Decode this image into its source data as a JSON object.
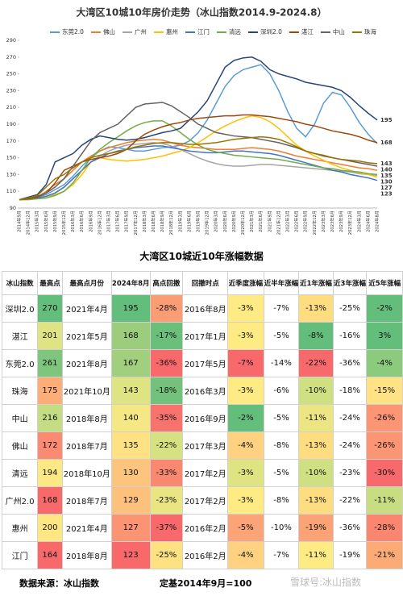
{
  "chart_data": {
    "type": "line",
    "title": "大湾区10城10年房价走势（冰山指数2014.9-2024.8）",
    "categories": [
      "2014年9月",
      "2014年12月",
      "2015年3月",
      "2015年6月",
      "2015年9月",
      "2015年12月",
      "2016年3月",
      "2016年6月",
      "2016年9月",
      "2016年12月",
      "2017年3月",
      "2017年6月",
      "2017年9月",
      "2017年12月",
      "2018年3月",
      "2018年6月",
      "2018年9月",
      "2018年12月",
      "2019年3月",
      "2019年6月",
      "2019年9月",
      "2019年12月",
      "2020年3月",
      "2020年6月",
      "2020年9月",
      "2020年12月",
      "2021年3月",
      "2021年6月",
      "2021年9月",
      "2021年12月",
      "2022年3月",
      "2022年6月",
      "2022年9月",
      "2022年12月",
      "2023年3月",
      "2023年6月",
      "2023年9月",
      "2023年12月",
      "2024年3月",
      "2024年6月",
      "2024年8月"
    ],
    "ylim": [
      90,
      290
    ],
    "yticks": [
      90,
      110,
      130,
      150,
      170,
      190,
      210,
      230,
      250,
      270,
      290
    ],
    "grid": false,
    "legend": "top",
    "series": [
      {
        "name": "东莞2.0",
        "color": "#5b9bd5",
        "label_last": false,
        "values": [
          100,
          101,
          103,
          106,
          112,
          118,
          128,
          140,
          150,
          158,
          163,
          162,
          160,
          158,
          158,
          160,
          162,
          163,
          165,
          170,
          180,
          195,
          215,
          235,
          248,
          255,
          258,
          261,
          250,
          230,
          205,
          185,
          175,
          190,
          215,
          228,
          225,
          210,
          192,
          178,
          167
        ]
      },
      {
        "name": "佛山",
        "color": "#ed7d31",
        "label_last": true,
        "values": [
          100,
          101,
          103,
          110,
          118,
          125,
          135,
          145,
          152,
          158,
          162,
          165,
          168,
          170,
          171,
          172,
          171,
          168,
          165,
          163,
          162,
          161,
          160,
          160,
          160,
          161,
          162,
          161,
          160,
          158,
          155,
          152,
          150,
          148,
          146,
          144,
          142,
          140,
          138,
          137,
          135
        ]
      },
      {
        "name": "广州",
        "color": "#a5a5a5",
        "label_last": false,
        "values": [
          100,
          101,
          102,
          104,
          108,
          115,
          125,
          135,
          145,
          152,
          158,
          162,
          165,
          166,
          167,
          168,
          167,
          164,
          160,
          155,
          150,
          146,
          143,
          141,
          140,
          140,
          141,
          142,
          142,
          141,
          140,
          139,
          138,
          137,
          136,
          135,
          134,
          133,
          131,
          130,
          129
        ]
      },
      {
        "name": "惠州",
        "color": "#ffc000",
        "label_last": true,
        "values": [
          100,
          101,
          102,
          104,
          106,
          110,
          118,
          130,
          145,
          150,
          148,
          147,
          146,
          147,
          148,
          150,
          152,
          155,
          158,
          162,
          168,
          175,
          182,
          188,
          193,
          197,
          200,
          198,
          193,
          185,
          175,
          165,
          158,
          152,
          147,
          142,
          138,
          135,
          132,
          130,
          127
        ]
      },
      {
        "name": "江门",
        "color": "#4472c4",
        "label_last": true,
        "values": [
          100,
          101,
          102,
          104,
          108,
          115,
          125,
          135,
          145,
          150,
          155,
          158,
          160,
          162,
          163,
          164,
          164,
          162,
          160,
          158,
          157,
          156,
          156,
          157,
          158,
          158,
          157,
          156,
          155,
          153,
          150,
          147,
          144,
          141,
          138,
          135,
          133,
          130,
          128,
          126,
          123
        ]
      },
      {
        "name": "清远",
        "color": "#70ad47",
        "label_last": true,
        "values": [
          100,
          100,
          101,
          102,
          105,
          110,
          120,
          135,
          150,
          160,
          168,
          175,
          182,
          188,
          192,
          194,
          194,
          188,
          180,
          172,
          165,
          160,
          157,
          155,
          153,
          152,
          151,
          150,
          149,
          148,
          146,
          144,
          142,
          140,
          138,
          137,
          135,
          134,
          133,
          131,
          130
        ]
      },
      {
        "name": "深圳2.0",
        "color": "#264478",
        "label_last": true,
        "values": [
          100,
          103,
          106,
          118,
          145,
          150,
          155,
          165,
          172,
          176,
          174,
          172,
          171,
          172,
          174,
          177,
          180,
          182,
          185,
          195,
          205,
          218,
          238,
          258,
          266,
          269,
          270,
          265,
          255,
          250,
          247,
          244,
          240,
          238,
          236,
          234,
          230,
          222,
          212,
          203,
          195
        ]
      },
      {
        "name": "湛江",
        "color": "#9e480e",
        "label_last": true,
        "values": [
          100,
          101,
          103,
          108,
          120,
          135,
          140,
          145,
          148,
          150,
          152,
          155,
          160,
          170,
          178,
          183,
          187,
          190,
          192,
          195,
          197,
          198,
          199,
          200,
          200,
          201,
          201,
          200,
          199,
          197,
          195,
          193,
          190,
          188,
          185,
          182,
          180,
          178,
          175,
          171,
          168
        ]
      },
      {
        "name": "中山",
        "color": "#636363",
        "label_last": true,
        "values": [
          100,
          102,
          104,
          108,
          115,
          125,
          140,
          155,
          170,
          180,
          185,
          190,
          200,
          210,
          214,
          215,
          216,
          212,
          205,
          198,
          190,
          185,
          180,
          178,
          176,
          175,
          174,
          172,
          170,
          168,
          165,
          162,
          158,
          155,
          152,
          150,
          148,
          146,
          144,
          142,
          140
        ]
      },
      {
        "name": "珠海",
        "color": "#997300",
        "label_last": true,
        "values": [
          100,
          102,
          105,
          115,
          125,
          130,
          138,
          145,
          150,
          153,
          155,
          157,
          160,
          163,
          165,
          167,
          168,
          168,
          167,
          166,
          166,
          167,
          168,
          170,
          172,
          173,
          174,
          175,
          174,
          172,
          168,
          163,
          158,
          155,
          153,
          150,
          148,
          147,
          146,
          144,
          143
        ]
      }
    ]
  },
  "table": {
    "title": "大湾区10城近10年涨幅数据",
    "header": [
      "冰山指数",
      "最高点",
      "最高点月份",
      "2024年8月",
      "高点回撤",
      "回撤时点",
      "近季度涨幅",
      "近半年涨幅",
      "近1年涨幅",
      "近3年涨幅",
      "近5年涨幅"
    ],
    "rows": [
      [
        "深圳2.0",
        "270",
        "2021年4月",
        "195",
        "-28%",
        "2016年8月",
        "-3%",
        "-7%",
        "-13%",
        "-25%",
        "-2%"
      ],
      [
        "湛江",
        "201",
        "2021年5月",
        "168",
        "-17%",
        "2017年1月",
        "-3%",
        "-5%",
        "-8%",
        "-16%",
        "3%"
      ],
      [
        "东莞2.0",
        "261",
        "2021年8月",
        "167",
        "-36%",
        "2017年5月",
        "-7%",
        "-14%",
        "-22%",
        "-36%",
        "-4%"
      ],
      [
        "珠海",
        "175",
        "2021年10月",
        "143",
        "-18%",
        "2016年3月",
        "-3%",
        "-6%",
        "-10%",
        "-18%",
        "-15%"
      ],
      [
        "中山",
        "216",
        "2018年8月",
        "140",
        "-35%",
        "2016年9月",
        "-2%",
        "-5%",
        "-11%",
        "-24%",
        "-26%"
      ],
      [
        "佛山",
        "172",
        "2018年7月",
        "135",
        "-22%",
        "2017年3月",
        "-4%",
        "-8%",
        "-13%",
        "-24%",
        "-26%"
      ],
      [
        "清远",
        "194",
        "2018年10月",
        "130",
        "-33%",
        "2017年2月",
        "-3%",
        "-5%",
        "-10%",
        "-23%",
        "-30%"
      ],
      [
        "广州2.0",
        "168",
        "2018年7月",
        "129",
        "-23%",
        "2017年2月",
        "-3%",
        "-8%",
        "-13%",
        "-22%",
        "-11%"
      ],
      [
        "惠州",
        "200",
        "2021年4月",
        "127",
        "-37%",
        "2016年2月",
        "-5%",
        "-10%",
        "-19%",
        "-36%",
        "-28%"
      ],
      [
        "江门",
        "164",
        "2018年8月",
        "123",
        "-25%",
        "2016年2月",
        "-4%",
        "-7%",
        "-11%",
        "-19%",
        "-21%"
      ]
    ],
    "cell_colors": [
      [
        null,
        "#63be7b",
        null,
        "#63be7b",
        "#fa9d75",
        null,
        "#ffeb84",
        null,
        "#fedd81",
        null,
        "#63be7b"
      ],
      [
        null,
        "#dfe383",
        null,
        "#9bcd7c",
        "#6abf7b",
        null,
        "#ffeb84",
        null,
        "#63be7b",
        null,
        "#63be7b"
      ],
      [
        null,
        "#7ec57d",
        null,
        "#a2cf7e",
        "#f8696b",
        null,
        "#f8696b",
        null,
        "#f8696b",
        null,
        "#8ccb7e"
      ],
      [
        null,
        "#fcad78",
        null,
        "#dde481",
        "#72c17c",
        null,
        "#ffeb84",
        null,
        "#cfe082",
        null,
        "#ffe283"
      ],
      [
        null,
        "#c4dc82",
        null,
        "#f5e884",
        "#f8736d",
        null,
        "#63be7b",
        null,
        "#ebe683",
        null,
        "#fb9574"
      ],
      [
        null,
        "#fa8a72",
        null,
        "#fee182",
        "#d6e182",
        null,
        "#fed280",
        null,
        "#fedd81",
        null,
        "#fb9574"
      ],
      [
        null,
        "#fde983",
        null,
        "#fdc47d",
        "#f98870",
        null,
        "#dde481",
        null,
        "#cfe082",
        null,
        "#f8696b"
      ],
      [
        null,
        "#f8696b",
        null,
        "#fdc17c",
        "#e9e583",
        null,
        "#ffeb84",
        null,
        "#fedd81",
        null,
        "#c8dd81"
      ],
      [
        null,
        "#fee683",
        null,
        "#fa9473",
        "#f8696b",
        null,
        "#fca377",
        null,
        "#fba276",
        null,
        "#fa8670"
      ],
      [
        null,
        "#f8696b",
        null,
        "#f8696b",
        "#fee282",
        null,
        "#fed280",
        null,
        "#ffeb84",
        null,
        "#fcab77"
      ]
    ]
  },
  "footer": {
    "source": "数据来源：冰山指数",
    "base": "定基2014年9月=100",
    "watermark": "雪球号:冰山指数"
  }
}
